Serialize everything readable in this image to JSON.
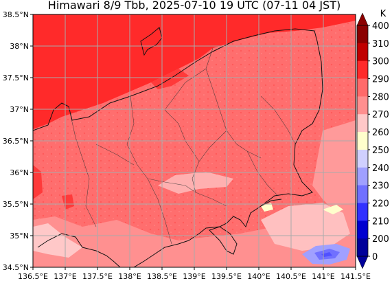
{
  "title": "Himawari 8/9 Tbb, 2025-07-10 19 UTC (07-11 04 JST)",
  "map": {
    "lon_range": [
      136.5,
      141.5
    ],
    "lat_range": [
      34.5,
      38.5
    ],
    "x_ticks": [
      {
        "value": 136.5,
        "label": "136.5°E"
      },
      {
        "value": 137.0,
        "label": "137°E"
      },
      {
        "value": 137.5,
        "label": "137.5°E"
      },
      {
        "value": 138.0,
        "label": "138°E"
      },
      {
        "value": 138.5,
        "label": "138.5°E"
      },
      {
        "value": 139.0,
        "label": "139°E"
      },
      {
        "value": 139.5,
        "label": "139.5°E"
      },
      {
        "value": 140.0,
        "label": "140°E"
      },
      {
        "value": 140.5,
        "label": "140.5°E"
      },
      {
        "value": 141.0,
        "label": "141°E"
      },
      {
        "value": 141.5,
        "label": "141.5°E"
      }
    ],
    "y_ticks": [
      {
        "value": 38.5,
        "label": "38.5°N"
      },
      {
        "value": 38.0,
        "label": "38°N"
      },
      {
        "value": 37.5,
        "label": "37.5°N"
      },
      {
        "value": 37.0,
        "label": "37°N"
      },
      {
        "value": 36.5,
        "label": "36.5°N"
      },
      {
        "value": 36.0,
        "label": "36°N"
      },
      {
        "value": 35.5,
        "label": "35.5°N"
      },
      {
        "value": 35.0,
        "label": "35°N"
      },
      {
        "value": 34.5,
        "label": "34.5°N"
      }
    ],
    "gridlines": true,
    "background_color": "#ff6e6e"
  },
  "colorbar": {
    "unit": "K",
    "levels": [
      {
        "label": "400"
      },
      {
        "label": "310"
      },
      {
        "label": "300"
      },
      {
        "label": "290"
      },
      {
        "label": "280"
      },
      {
        "label": "270"
      },
      {
        "label": "260"
      },
      {
        "label": "250"
      },
      {
        "label": "240"
      },
      {
        "label": "230"
      },
      {
        "label": "220"
      },
      {
        "label": "210"
      },
      {
        "label": "200"
      },
      {
        "label": "0"
      }
    ],
    "colors": [
      "#8b0000",
      "#c00000",
      "#ff2a2a",
      "#ff6a6a",
      "#ff8f8f",
      "#ffc8c8",
      "#ffffcc",
      "#d0d0ff",
      "#a0a0ff",
      "#7070ff",
      "#3030ff",
      "#0000d0",
      "#00009a"
    ]
  }
}
